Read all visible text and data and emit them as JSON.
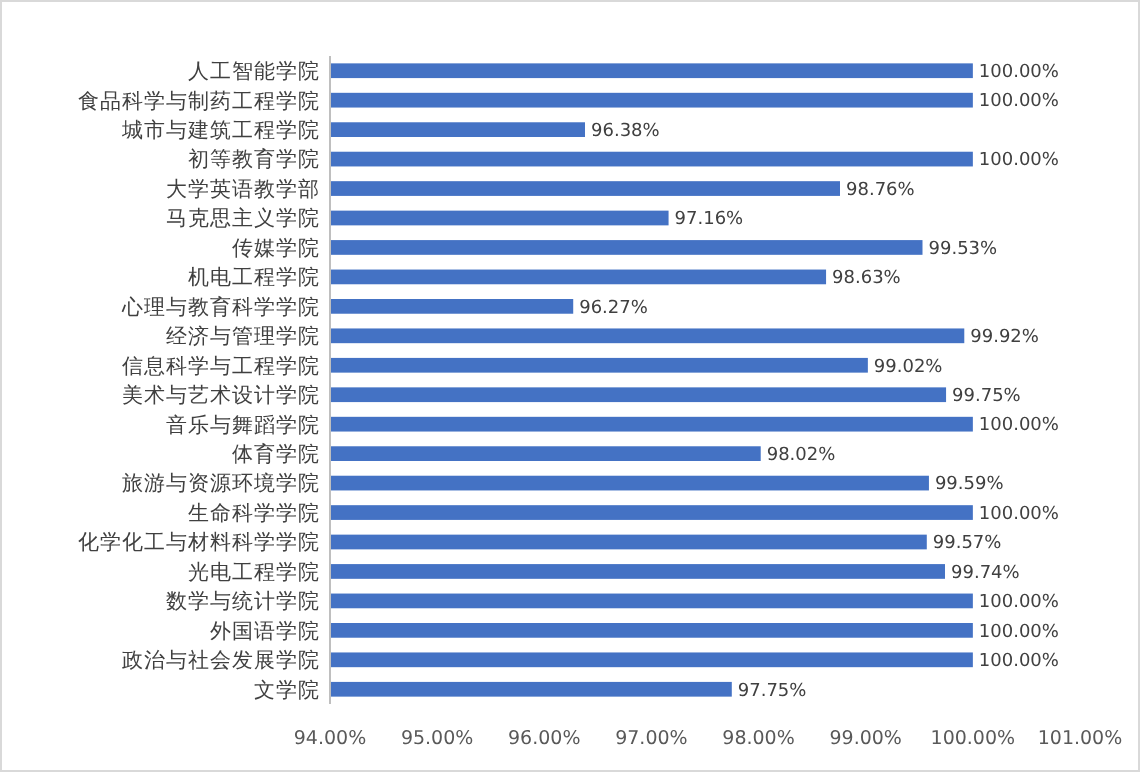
{
  "chart_data": {
    "type": "bar",
    "orientation": "horizontal",
    "categories": [
      "人工智能学院",
      "食品科学与制药工程学院",
      "城市与建筑工程学院",
      "初等教育学院",
      "大学英语教学部",
      "马克思主义学院",
      "传媒学院",
      "机电工程学院",
      "心理与教育科学学院",
      "经济与管理学院",
      "信息科学与工程学院",
      "美术与艺术设计学院",
      "音乐与舞蹈学院",
      "体育学院",
      "旅游与资源环境学院",
      "生命科学学院",
      "化学化工与材料科学学院",
      "光电工程学院",
      "数学与统计学院",
      "外国语学院",
      "政治与社会发展学院",
      "文学院"
    ],
    "values": [
      100,
      100,
      96.38,
      100,
      98.76,
      97.16,
      99.53,
      98.63,
      96.27,
      99.92,
      99.02,
      99.75,
      100,
      98.02,
      99.59,
      100,
      99.57,
      99.74,
      100,
      100,
      100,
      97.75
    ],
    "value_labels": [
      "100.00%",
      "100.00%",
      "96.38%",
      "100.00%",
      "98.76%",
      "97.16%",
      "99.53%",
      "98.63%",
      "96.27%",
      "99.92%",
      "99.02%",
      "99.75%",
      "100.00%",
      "98.02%",
      "99.59%",
      "100.00%",
      "99.57%",
      "99.74%",
      "100.00%",
      "100.00%",
      "100.00%",
      "97.75%"
    ],
    "color": "#4472c4",
    "xlim": [
      94,
      101
    ],
    "xticks": [
      {
        "value": 94,
        "label": "94.00%"
      },
      {
        "value": 95,
        "label": "95.00%"
      },
      {
        "value": 96,
        "label": "96.00%"
      },
      {
        "value": 97,
        "label": "97.00%"
      },
      {
        "value": 98,
        "label": "98.00%"
      },
      {
        "value": 99,
        "label": "99.00%"
      },
      {
        "value": 100,
        "label": "100.00%"
      },
      {
        "value": 101,
        "label": "101.00%"
      }
    ]
  }
}
